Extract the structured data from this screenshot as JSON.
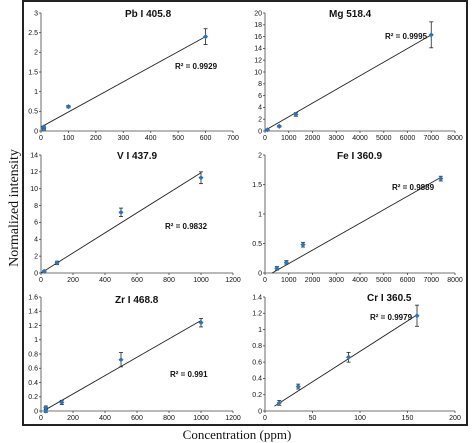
{
  "figure": {
    "ylabel": "Normalized intensity",
    "xlabel": "Concentration (ppm)"
  },
  "chart_data": [
    {
      "type": "scatter",
      "title": "Pb I 405.8",
      "r2": "R² = 0.9929",
      "xlim": [
        0,
        700
      ],
      "ylim": [
        0,
        3
      ],
      "xticks": [
        0,
        100,
        200,
        300,
        400,
        500,
        600,
        700
      ],
      "yticks": [
        0,
        0.5,
        1,
        1.5,
        2,
        2.5,
        3
      ],
      "points": [
        {
          "x": 10,
          "y": 0.05,
          "err": 0.03
        },
        {
          "x": 10,
          "y": 0.1,
          "err": 0.03
        },
        {
          "x": 100,
          "y": 0.62,
          "err": 0.03
        },
        {
          "x": 600,
          "y": 2.4,
          "err": 0.2
        }
      ],
      "fit": [
        [
          0,
          0.1
        ],
        [
          600,
          2.4
        ]
      ],
      "series_color": "#2e75b6"
    },
    {
      "type": "scatter",
      "title": "Mg 518.4",
      "r2": "R² = 0.9995",
      "xlim": [
        0,
        8000
      ],
      "ylim": [
        0,
        20
      ],
      "xticks": [
        0,
        1000,
        2000,
        3000,
        4000,
        5000,
        6000,
        7000,
        8000
      ],
      "yticks": [
        0,
        2,
        4,
        6,
        8,
        10,
        12,
        14,
        16,
        18,
        20
      ],
      "points": [
        {
          "x": 100,
          "y": 0.2,
          "err": 0.1
        },
        {
          "x": 600,
          "y": 0.8,
          "err": 0.15
        },
        {
          "x": 1300,
          "y": 2.8,
          "err": 0.3
        },
        {
          "x": 7000,
          "y": 16.3,
          "err": 2.2
        }
      ],
      "fit": [
        [
          0,
          0.1
        ],
        [
          7000,
          16.3
        ]
      ],
      "series_color": "#2e75b6"
    },
    {
      "type": "scatter",
      "title": "V I 437.9",
      "r2": "R² = 0.9832",
      "xlim": [
        0,
        1200
      ],
      "ylim": [
        0,
        14
      ],
      "xticks": [
        0,
        200,
        400,
        600,
        800,
        1000,
        1200
      ],
      "yticks": [
        0,
        2,
        4,
        6,
        8,
        10,
        12,
        14
      ],
      "points": [
        {
          "x": 20,
          "y": 0.2,
          "err": 0.1
        },
        {
          "x": 100,
          "y": 1.2,
          "err": 0.2
        },
        {
          "x": 500,
          "y": 7.2,
          "err": 0.5
        },
        {
          "x": 1000,
          "y": 11.3,
          "err": 0.7
        }
      ],
      "fit": [
        [
          0,
          0
        ],
        [
          1000,
          11.9
        ]
      ],
      "series_color": "#2e75b6"
    },
    {
      "type": "scatter",
      "title": "Fe I 360.9",
      "r2": "R² = 0.9889",
      "xlim": [
        0,
        8000
      ],
      "ylim": [
        0,
        2
      ],
      "xticks": [
        0,
        1000,
        2000,
        3000,
        4000,
        5000,
        6000,
        7000,
        8000
      ],
      "yticks": [
        0,
        0.5,
        1,
        1.5,
        2
      ],
      "points": [
        {
          "x": 500,
          "y": 0.08,
          "err": 0.03
        },
        {
          "x": 900,
          "y": 0.18,
          "err": 0.03
        },
        {
          "x": 1600,
          "y": 0.48,
          "err": 0.04
        },
        {
          "x": 7400,
          "y": 1.6,
          "err": 0.04
        }
      ],
      "fit": [
        [
          300,
          0.0
        ],
        [
          7400,
          1.62
        ]
      ],
      "series_color": "#2e75b6"
    },
    {
      "type": "scatter",
      "title": "Zr I 468.8",
      "r2": "R² = 0.991",
      "xlim": [
        0,
        1200
      ],
      "ylim": [
        0,
        1.6
      ],
      "xticks": [
        0,
        200,
        400,
        600,
        800,
        1000,
        1200
      ],
      "yticks": [
        0,
        0.2,
        0.4,
        0.6,
        0.8,
        1,
        1.2,
        1.4,
        1.6
      ],
      "points": [
        {
          "x": 30,
          "y": 0.0,
          "err": 0.02
        },
        {
          "x": 30,
          "y": 0.05,
          "err": 0.02
        },
        {
          "x": 130,
          "y": 0.12,
          "err": 0.03
        },
        {
          "x": 500,
          "y": 0.72,
          "err": 0.1
        },
        {
          "x": 1000,
          "y": 1.24,
          "err": 0.06
        }
      ],
      "fit": [
        [
          30,
          0.02
        ],
        [
          1000,
          1.27
        ]
      ],
      "series_color": "#2e75b6"
    },
    {
      "type": "scatter",
      "title": "Cr I 360.5",
      "r2": "R² = 0.9979",
      "xlim": [
        0,
        200
      ],
      "ylim": [
        0,
        1.4
      ],
      "xticks": [
        0,
        50,
        100,
        150,
        200
      ],
      "yticks": [
        0,
        0.2,
        0.4,
        0.6,
        0.8,
        1,
        1.2,
        1.4
      ],
      "points": [
        {
          "x": 15,
          "y": 0.1,
          "err": 0.03
        },
        {
          "x": 35,
          "y": 0.3,
          "err": 0.03
        },
        {
          "x": 88,
          "y": 0.66,
          "err": 0.06
        },
        {
          "x": 160,
          "y": 1.17,
          "err": 0.13
        }
      ],
      "fit": [
        [
          10,
          0.06
        ],
        [
          160,
          1.18
        ]
      ],
      "series_color": "#2e75b6"
    }
  ]
}
